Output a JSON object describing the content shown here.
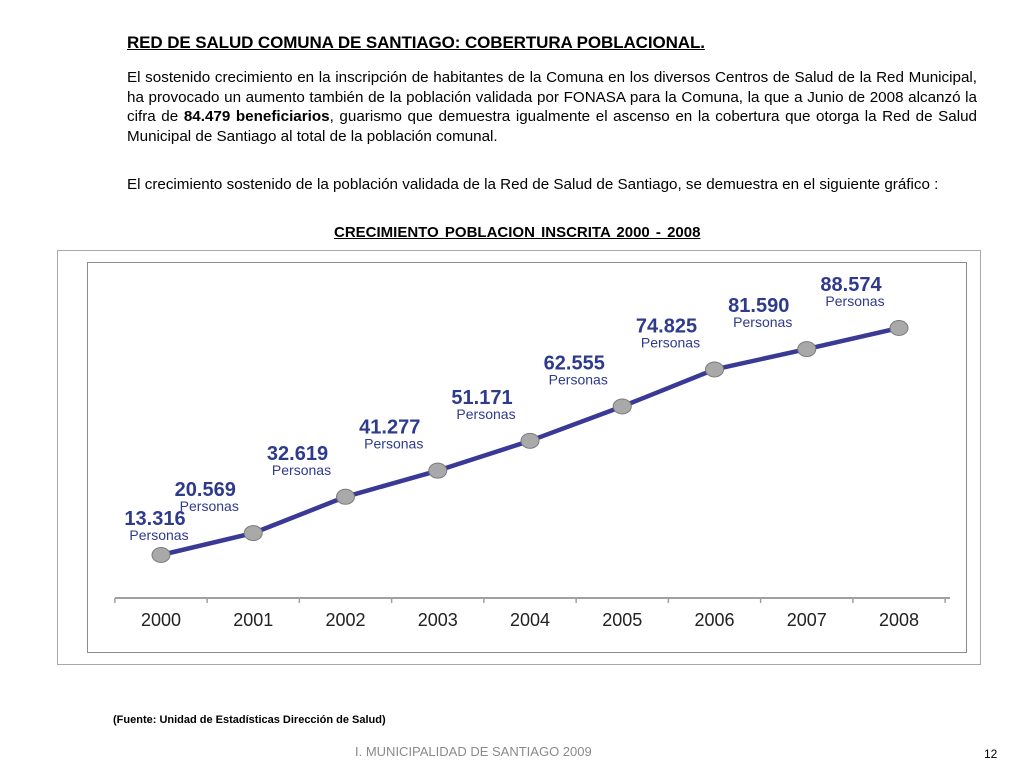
{
  "heading": "RED DE SALUD COMUNA DE SANTIAGO: COBERTURA POBLACIONAL.",
  "paragraph1": {
    "before": "El sostenido crecimiento en la inscripción de habitantes de la Comuna en los diversos Centros de Salud de la   Red Municipal, ha provocado un aumento también de la población validada por FONASA para la Comuna, la que a Junio de 2008 alcanzó la cifra de ",
    "bold": "84.479 beneficiarios",
    "after": ", guarismo que demuestra igualmente el ascenso en la cobertura que otorga  la Red de Salud Municipal de Santiago al total de la población comunal."
  },
  "paragraph2": "El crecimiento sostenido de la población validada de la Red de Salud de Santiago, se demuestra en el siguiente gráfico :",
  "chart_data": {
    "type": "line",
    "title": "CRECIMIENTO  POBLACION  INSCRITA   2000 -  2008",
    "categories": [
      "2000",
      "2001",
      "2002",
      "2003",
      "2004",
      "2005",
      "2006",
      "2007",
      "2008"
    ],
    "values": [
      13316,
      20569,
      32619,
      41277,
      51171,
      62555,
      74825,
      81590,
      88574
    ],
    "data_labels": [
      "13.316",
      "20.569",
      "32.619",
      "41.277",
      "51.171",
      "62.555",
      "74.825",
      "81.590",
      "88.574"
    ],
    "unit_label": "Personas",
    "xlabel": "",
    "ylabel": "",
    "grid": false,
    "colors": {
      "line": "#3a3a96",
      "label": "#2e3a8c",
      "marker": "#a9a9a9",
      "axis": "#a0a0a0"
    }
  },
  "source": "(Fuente: Unidad de Estadísticas Dirección de Salud)",
  "footer": "I. MUNICIPALIDAD DE SANTIAGO 2009",
  "page_number": "12"
}
